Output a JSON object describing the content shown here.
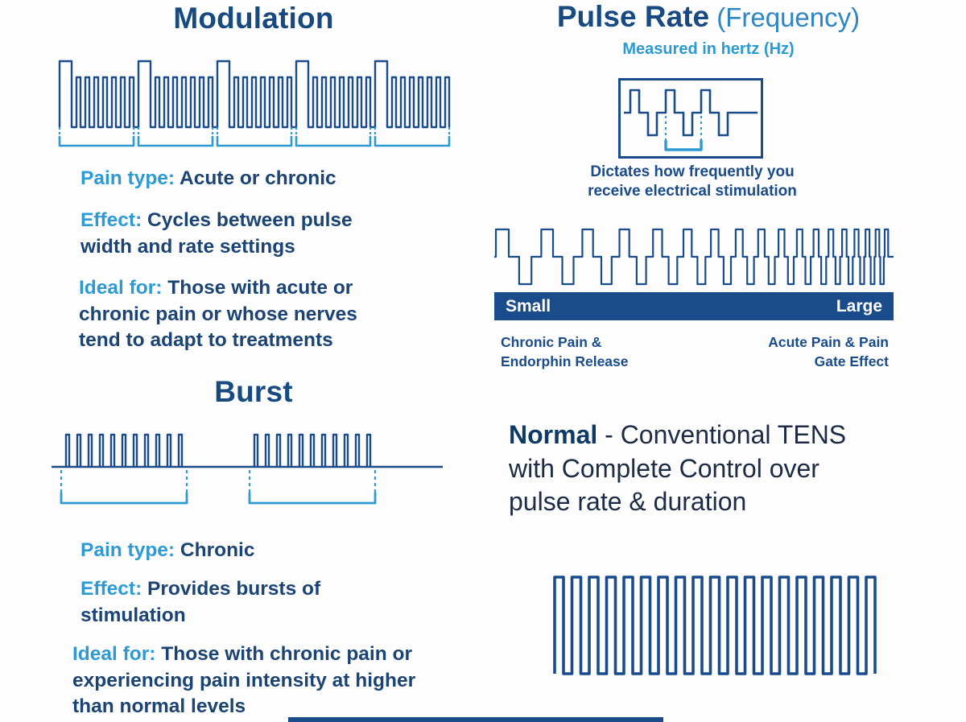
{
  "palette": {
    "dark_blue": "#1a4c8b",
    "light_blue": "#2d9ad3",
    "title_blue": "#164a80",
    "bar_navy": "#1a4c8b",
    "bar_text": "#ffffff"
  },
  "modulation": {
    "title": "Modulation",
    "pain_type_label": "Pain type:",
    "pain_type_value": "Acute or chronic",
    "effect_label": "Effect:",
    "effect_value": "Cycles between pulse width and rate settings",
    "ideal_label": "Ideal for:",
    "ideal_value": "Those with acute or chronic pain or whose nerves tend to adapt to treatments"
  },
  "burst": {
    "title": "Burst",
    "pain_type_label": "Pain type:",
    "pain_type_value": "Chronic",
    "effect_label": "Effect:",
    "effect_value": "Provides bursts of stimulation",
    "ideal_label": "Ideal for:",
    "ideal_value": "Those with chronic pain or experiencing pain intensity at higher than normal levels"
  },
  "pulse_rate": {
    "title": "Pulse Rate",
    "title_suffix": " (Frequency)",
    "subtitle": "Measured in hertz (Hz)",
    "box_caption": "Dictates how frequently you receive electrical stimulation",
    "scale_left": "Small",
    "scale_right": "Large",
    "left_caption": "Chronic Pain & Endorphin Release",
    "right_caption": "Acute Pain & Pain Gate Effect"
  },
  "normal": {
    "title": "Normal",
    "description": " - Conventional TENS with Complete Control over pulse rate & duration"
  }
}
